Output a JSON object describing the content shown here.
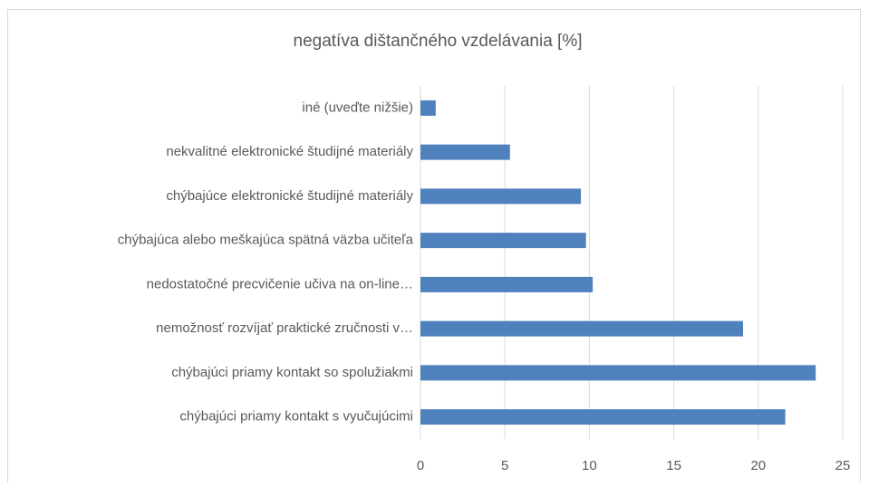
{
  "chart_data": {
    "type": "bar",
    "orientation": "horizontal",
    "title": "negatíva dištančného vzdelávania [%]",
    "categories": [
      "iné (uveďte nižšie)",
      "nekvalitné elektronické študijné materiály",
      "chýbajúce elektronické študijné materiály",
      "chýbajúca alebo meškajúca spätná väzba učiteľa",
      "nedostatočné precvičenie učiva na on-line…",
      "nemožnosť rozvíjať praktické zručnosti v…",
      "chýbajúci priamy kontakt so spolužiakmi",
      "chýbajúci priamy kontakt s vyučujúcimi"
    ],
    "values": [
      0.9,
      5.3,
      9.5,
      9.8,
      10.2,
      19.1,
      23.4,
      21.6
    ],
    "color": "#4f81bd",
    "xlim": [
      0,
      25
    ],
    "xticks": [
      0,
      5,
      10,
      15,
      20,
      25
    ],
    "grid": true
  }
}
